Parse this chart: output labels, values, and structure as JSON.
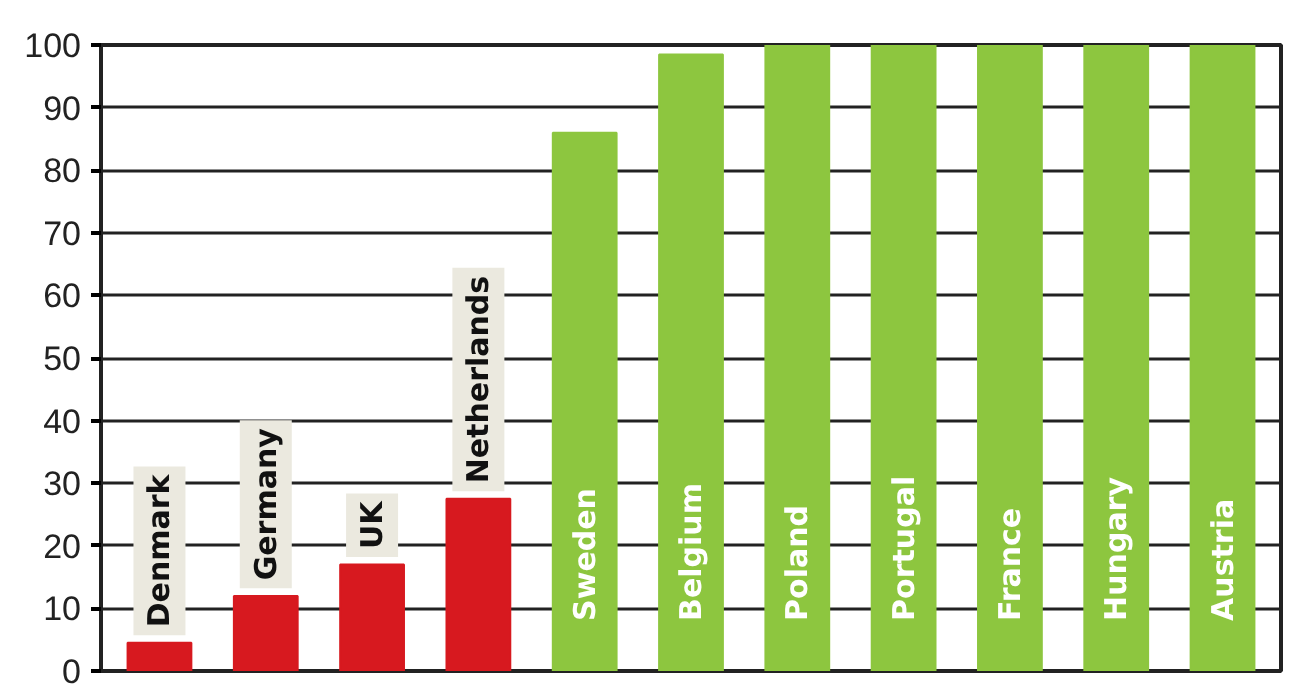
{
  "chart_data": {
    "type": "bar",
    "categories": [
      "Denmark",
      "Germany",
      "UK",
      "Netherlands",
      "Sweden",
      "Belgium",
      "Poland",
      "Portugal",
      "France",
      "Hungary",
      "Austria"
    ],
    "values": [
      4.5,
      12,
      17,
      27.5,
      86,
      98.5,
      100,
      100,
      100,
      100,
      100
    ],
    "colors": [
      "#d7191f",
      "#d7191f",
      "#d7191f",
      "#d7191f",
      "#8dc63f",
      "#8dc63f",
      "#8dc63f",
      "#8dc63f",
      "#8dc63f",
      "#8dc63f",
      "#8dc63f"
    ],
    "ylim": [
      0,
      100
    ],
    "yticks": [
      0,
      10,
      20,
      30,
      40,
      50,
      60,
      70,
      80,
      90,
      100
    ],
    "grid": "y"
  }
}
